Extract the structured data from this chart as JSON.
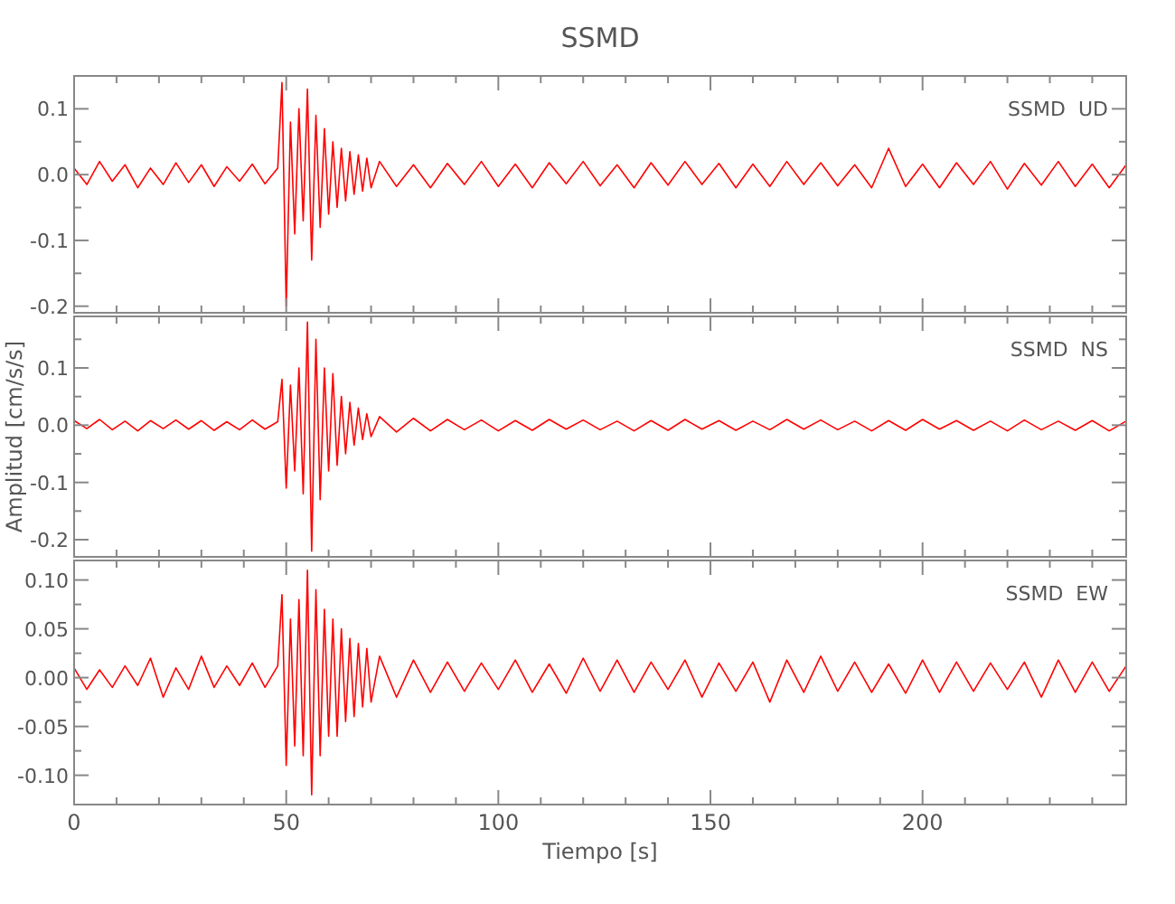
{
  "chart_data": [
    {
      "type": "line",
      "title": "SSMD",
      "annotations": [
        "SSMD  UD"
      ],
      "tick_labels": "y",
      "xlim": [
        0,
        248
      ],
      "xticks": [
        0,
        {
          "value": 10,
          "label": null
        },
        {
          "value": 20,
          "label": null
        },
        {
          "value": 30,
          "label": null
        },
        {
          "value": 40,
          "label": null
        },
        50,
        {
          "value": 60,
          "label": null
        },
        {
          "value": 70,
          "label": null
        },
        {
          "value": 80,
          "label": null
        },
        {
          "value": 90,
          "label": null
        },
        100,
        {
          "value": 110,
          "label": null
        },
        {
          "value": 120,
          "label": null
        },
        {
          "value": 130,
          "label": null
        },
        {
          "value": 140,
          "label": null
        },
        150,
        {
          "value": 160,
          "label": null
        },
        {
          "value": 170,
          "label": null
        },
        {
          "value": 180,
          "label": null
        },
        {
          "value": 190,
          "label": null
        },
        200,
        {
          "value": 210,
          "label": null
        },
        {
          "value": 220,
          "label": null
        },
        {
          "value": 230,
          "label": null
        },
        {
          "value": 240,
          "label": null
        }
      ],
      "ylim": [
        -0.21,
        0.15
      ],
      "yticks": [
        -0.2,
        {
          "value": -0.15,
          "label": null
        },
        -0.1,
        {
          "value": -0.05,
          "label": null
        },
        {
          "value": 0,
          "label": "0.0"
        },
        {
          "value": 0.05,
          "label": null
        },
        0.1
      ],
      "x": [
        0,
        3,
        6,
        9,
        12,
        15,
        18,
        21,
        24,
        27,
        30,
        33,
        36,
        39,
        42,
        45,
        48,
        49,
        50,
        51,
        52,
        53,
        54,
        55,
        56,
        57,
        58,
        59,
        60,
        61,
        62,
        63,
        64,
        65,
        66,
        67,
        68,
        69,
        70,
        72,
        76,
        80,
        84,
        88,
        92,
        96,
        100,
        104,
        108,
        112,
        116,
        120,
        124,
        128,
        132,
        136,
        140,
        144,
        148,
        152,
        156,
        160,
        164,
        168,
        172,
        176,
        180,
        184,
        188,
        192,
        196,
        200,
        204,
        208,
        212,
        216,
        220,
        224,
        228,
        232,
        236,
        240,
        244,
        248
      ],
      "series": [
        {
          "color": "#ff0000",
          "values": [
            0.01,
            -0.015,
            0.02,
            -0.01,
            0.015,
            -0.02,
            0.01,
            -0.015,
            0.018,
            -0.012,
            0.015,
            -0.018,
            0.012,
            -0.01,
            0.016,
            -0.014,
            0.01,
            0.14,
            -0.2,
            0.08,
            -0.09,
            0.1,
            -0.07,
            0.13,
            -0.13,
            0.09,
            -0.08,
            0.07,
            -0.06,
            0.05,
            -0.05,
            0.04,
            -0.04,
            0.035,
            -0.03,
            0.03,
            -0.025,
            0.025,
            -0.02,
            0.02,
            -0.018,
            0.015,
            -0.02,
            0.017,
            -0.015,
            0.02,
            -0.018,
            0.016,
            -0.02,
            0.018,
            -0.014,
            0.02,
            -0.017,
            0.015,
            -0.02,
            0.018,
            -0.016,
            0.02,
            -0.015,
            0.017,
            -0.02,
            0.016,
            -0.018,
            0.02,
            -0.015,
            0.018,
            -0.017,
            0.015,
            -0.02,
            0.04,
            -0.018,
            0.016,
            -0.02,
            0.018,
            -0.015,
            0.02,
            -0.022,
            0.017,
            -0.016,
            0.02,
            -0.018,
            0.016,
            -0.02,
            0.015
          ]
        }
      ]
    },
    {
      "type": "line",
      "ylabel": "Amplitud [cm/s/s]",
      "annotations": [
        "SSMD  NS"
      ],
      "tick_labels": "y",
      "xlim": [
        0,
        248
      ],
      "xticks": [
        0,
        {
          "value": 10,
          "label": null
        },
        {
          "value": 20,
          "label": null
        },
        {
          "value": 30,
          "label": null
        },
        {
          "value": 40,
          "label": null
        },
        50,
        {
          "value": 60,
          "label": null
        },
        {
          "value": 70,
          "label": null
        },
        {
          "value": 80,
          "label": null
        },
        {
          "value": 90,
          "label": null
        },
        100,
        {
          "value": 110,
          "label": null
        },
        {
          "value": 120,
          "label": null
        },
        {
          "value": 130,
          "label": null
        },
        {
          "value": 140,
          "label": null
        },
        150,
        {
          "value": 160,
          "label": null
        },
        {
          "value": 170,
          "label": null
        },
        {
          "value": 180,
          "label": null
        },
        {
          "value": 190,
          "label": null
        },
        200,
        {
          "value": 210,
          "label": null
        },
        {
          "value": 220,
          "label": null
        },
        {
          "value": 230,
          "label": null
        },
        {
          "value": 240,
          "label": null
        }
      ],
      "ylim": [
        -0.23,
        0.19
      ],
      "yticks": [
        -0.2,
        {
          "value": -0.15,
          "label": null
        },
        -0.1,
        {
          "value": -0.05,
          "label": null
        },
        {
          "value": 0,
          "label": "0.0"
        },
        {
          "value": 0.05,
          "label": null
        },
        0.1,
        {
          "value": 0.15,
          "label": null
        }
      ],
      "x": [
        0,
        3,
        6,
        9,
        12,
        15,
        18,
        21,
        24,
        27,
        30,
        33,
        36,
        39,
        42,
        45,
        48,
        49,
        50,
        51,
        52,
        53,
        54,
        55,
        56,
        57,
        58,
        59,
        60,
        61,
        62,
        63,
        64,
        65,
        66,
        67,
        68,
        69,
        70,
        72,
        76,
        80,
        84,
        88,
        92,
        96,
        100,
        104,
        108,
        112,
        116,
        120,
        124,
        128,
        132,
        136,
        140,
        144,
        148,
        152,
        156,
        160,
        164,
        168,
        172,
        176,
        180,
        184,
        188,
        192,
        196,
        200,
        204,
        208,
        212,
        216,
        220,
        224,
        228,
        232,
        236,
        240,
        244,
        248
      ],
      "series": [
        {
          "color": "#ff0000",
          "values": [
            0.008,
            -0.006,
            0.01,
            -0.008,
            0.007,
            -0.01,
            0.008,
            -0.006,
            0.009,
            -0.007,
            0.008,
            -0.009,
            0.006,
            -0.008,
            0.009,
            -0.007,
            0.006,
            0.08,
            -0.11,
            0.07,
            -0.08,
            0.1,
            -0.12,
            0.18,
            -0.22,
            0.15,
            -0.13,
            0.1,
            -0.08,
            0.09,
            -0.07,
            0.05,
            -0.05,
            0.04,
            -0.035,
            0.03,
            -0.025,
            0.02,
            -0.02,
            0.015,
            -0.012,
            0.012,
            -0.01,
            0.01,
            -0.008,
            0.009,
            -0.01,
            0.008,
            -0.009,
            0.01,
            -0.007,
            0.009,
            -0.008,
            0.007,
            -0.01,
            0.008,
            -0.009,
            0.01,
            -0.007,
            0.008,
            -0.009,
            0.007,
            -0.008,
            0.01,
            -0.007,
            0.009,
            -0.008,
            0.007,
            -0.01,
            0.008,
            -0.009,
            0.01,
            -0.007,
            0.008,
            -0.009,
            0.007,
            -0.01,
            0.009,
            -0.008,
            0.007,
            -0.009,
            0.008,
            -0.01,
            0.007
          ]
        }
      ]
    },
    {
      "type": "line",
      "xlabel": "Tiempo [s]",
      "annotations": [
        "SSMD  EW"
      ],
      "xlim": [
        0,
        248
      ],
      "xticks": [
        0,
        {
          "value": 10,
          "label": null
        },
        {
          "value": 20,
          "label": null
        },
        {
          "value": 30,
          "label": null
        },
        {
          "value": 40,
          "label": null
        },
        50,
        {
          "value": 60,
          "label": null
        },
        {
          "value": 70,
          "label": null
        },
        {
          "value": 80,
          "label": null
        },
        {
          "value": 90,
          "label": null
        },
        100,
        {
          "value": 110,
          "label": null
        },
        {
          "value": 120,
          "label": null
        },
        {
          "value": 130,
          "label": null
        },
        {
          "value": 140,
          "label": null
        },
        150,
        {
          "value": 160,
          "label": null
        },
        {
          "value": 170,
          "label": null
        },
        {
          "value": 180,
          "label": null
        },
        {
          "value": 190,
          "label": null
        },
        200,
        {
          "value": 210,
          "label": null
        },
        {
          "value": 220,
          "label": null
        },
        {
          "value": 230,
          "label": null
        },
        {
          "value": 240,
          "label": null
        }
      ],
      "ylim": [
        -0.13,
        0.12
      ],
      "yticks": [
        {
          "value": -0.1,
          "label": "-0.10"
        },
        {
          "value": -0.075,
          "label": null
        },
        {
          "value": -0.05,
          "label": "-0.05"
        },
        {
          "value": -0.025,
          "label": null
        },
        {
          "value": 0,
          "label": "0.00"
        },
        {
          "value": 0.025,
          "label": null
        },
        {
          "value": 0.05,
          "label": "0.05"
        },
        {
          "value": 0.075,
          "label": null
        },
        {
          "value": 0.1,
          "label": "0.10"
        }
      ],
      "x": [
        0,
        3,
        6,
        9,
        12,
        15,
        18,
        21,
        24,
        27,
        30,
        33,
        36,
        39,
        42,
        45,
        48,
        49,
        50,
        51,
        52,
        53,
        54,
        55,
        56,
        57,
        58,
        59,
        60,
        61,
        62,
        63,
        64,
        65,
        66,
        67,
        68,
        69,
        70,
        72,
        76,
        80,
        84,
        88,
        92,
        96,
        100,
        104,
        108,
        112,
        116,
        120,
        124,
        128,
        132,
        136,
        140,
        144,
        148,
        152,
        156,
        160,
        164,
        168,
        172,
        176,
        180,
        184,
        188,
        192,
        196,
        200,
        204,
        208,
        212,
        216,
        220,
        224,
        228,
        232,
        236,
        240,
        244,
        248
      ],
      "series": [
        {
          "color": "#ff0000",
          "values": [
            0.01,
            -0.012,
            0.008,
            -0.01,
            0.012,
            -0.008,
            0.02,
            -0.02,
            0.01,
            -0.012,
            0.022,
            -0.01,
            0.012,
            -0.008,
            0.015,
            -0.01,
            0.012,
            0.085,
            -0.09,
            0.06,
            -0.07,
            0.08,
            -0.08,
            0.11,
            -0.12,
            0.09,
            -0.08,
            0.07,
            -0.06,
            0.06,
            -0.06,
            0.05,
            -0.045,
            0.04,
            -0.04,
            0.035,
            -0.03,
            0.03,
            -0.025,
            0.022,
            -0.02,
            0.018,
            -0.015,
            0.016,
            -0.014,
            0.015,
            -0.012,
            0.018,
            -0.015,
            0.014,
            -0.016,
            0.02,
            -0.014,
            0.018,
            -0.015,
            0.016,
            -0.012,
            0.018,
            -0.02,
            0.015,
            -0.014,
            0.016,
            -0.025,
            0.018,
            -0.015,
            0.022,
            -0.014,
            0.016,
            -0.015,
            0.014,
            -0.016,
            0.018,
            -0.015,
            0.016,
            -0.014,
            0.015,
            -0.012,
            0.016,
            -0.02,
            0.018,
            -0.015,
            0.016,
            -0.014,
            0.012
          ]
        }
      ]
    }
  ]
}
